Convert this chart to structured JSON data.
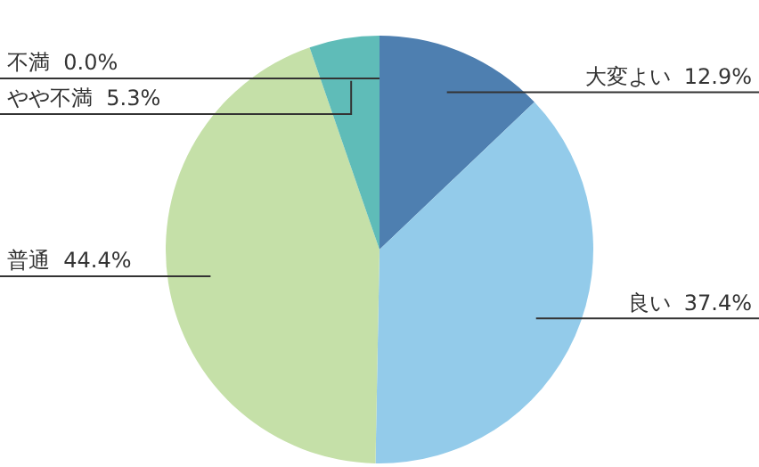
{
  "chart_data": {
    "type": "pie",
    "categories": [
      "大変よい",
      "良い",
      "普通",
      "やや不満",
      "不満"
    ],
    "values": [
      12.9,
      37.4,
      44.4,
      5.3,
      0.0
    ],
    "colors": [
      "#4e7fb0",
      "#93cbea",
      "#c5e0a8",
      "#5fbcb8",
      "#7fb0d0"
    ],
    "value_labels": [
      "12.9%",
      "37.4%",
      "44.4%",
      "5.3%",
      "0.0%"
    ],
    "legend": false
  }
}
